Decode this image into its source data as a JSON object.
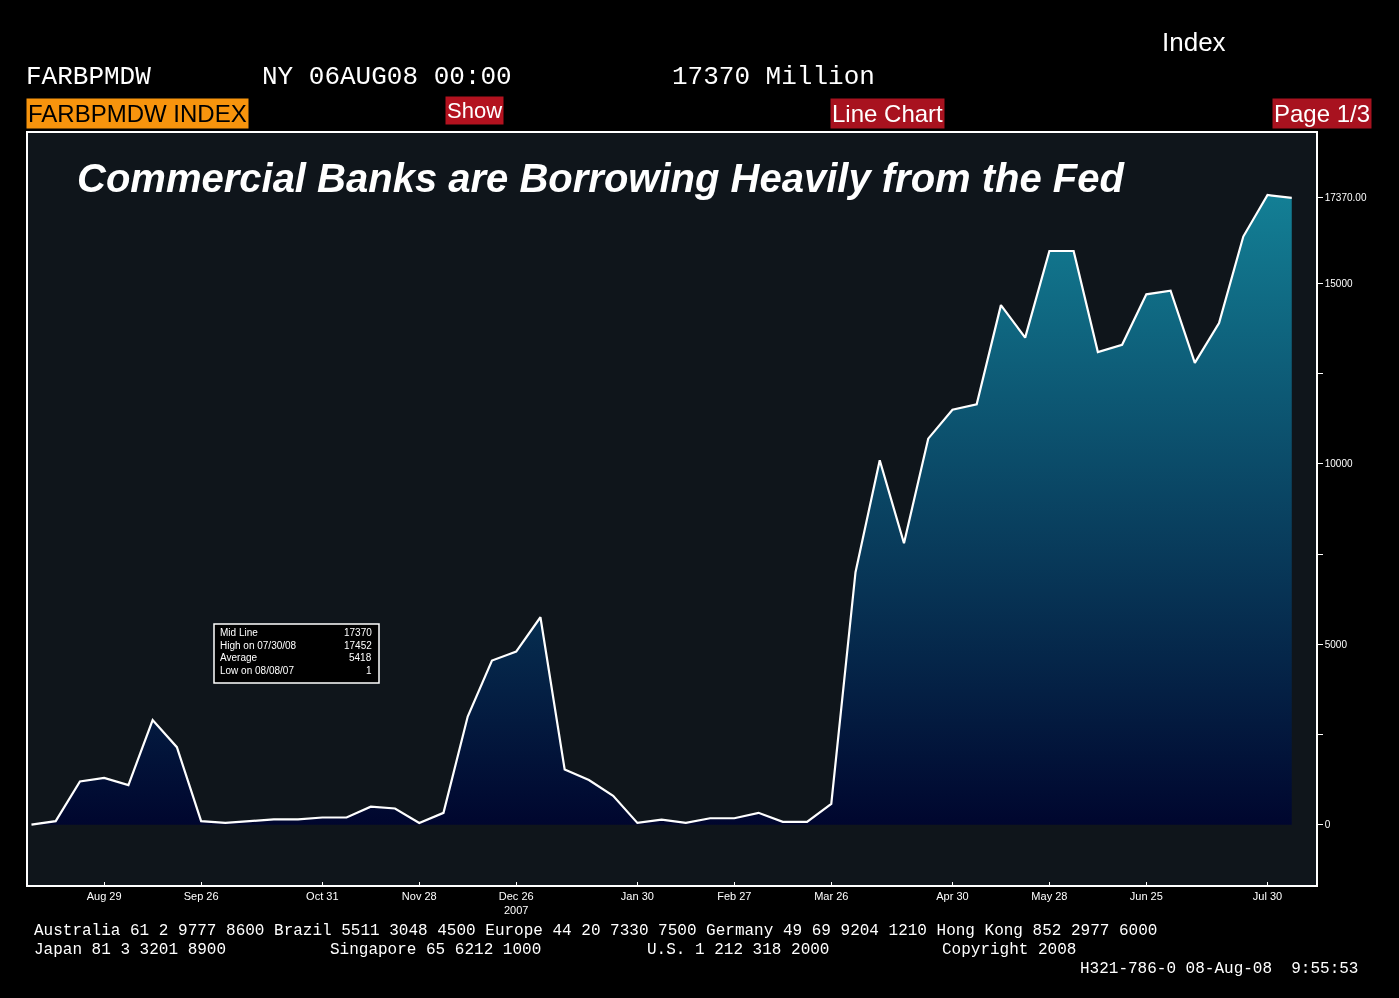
{
  "chart_data": {
    "type": "area",
    "title": "Commercial Banks are Borrowing Heavily from the Fed",
    "x": [
      "2007-08-08",
      "2007-08-15",
      "2007-08-22",
      "2007-08-29",
      "2007-09-05",
      "2007-09-12",
      "2007-09-19",
      "2007-09-26",
      "2007-10-03",
      "2007-10-10",
      "2007-10-17",
      "2007-10-24",
      "2007-10-31",
      "2007-11-07",
      "2007-11-14",
      "2007-11-21",
      "2007-11-28",
      "2007-12-05",
      "2007-12-12",
      "2007-12-19",
      "2007-12-26",
      "2008-01-02",
      "2008-01-09",
      "2008-01-16",
      "2008-01-23",
      "2008-01-30",
      "2008-02-06",
      "2008-02-13",
      "2008-02-20",
      "2008-02-27",
      "2008-03-05",
      "2008-03-12",
      "2008-03-19",
      "2008-03-26",
      "2008-04-02",
      "2008-04-09",
      "2008-04-16",
      "2008-04-23",
      "2008-04-30",
      "2008-05-07",
      "2008-05-14",
      "2008-05-21",
      "2008-05-28",
      "2008-06-04",
      "2008-06-11",
      "2008-06-18",
      "2008-06-25",
      "2008-07-02",
      "2008-07-09",
      "2008-07-16",
      "2008-07-23",
      "2008-07-30",
      "2008-08-06"
    ],
    "series": [
      {
        "color": "#ffffff",
        "values": [
          1,
          100,
          1200,
          1300,
          1100,
          2900,
          2150,
          100,
          50,
          100,
          150,
          150,
          200,
          200,
          500,
          450,
          50,
          330,
          3000,
          4550,
          4800,
          5750,
          1530,
          1240,
          800,
          50,
          140,
          50,
          180,
          180,
          330,
          80,
          80,
          580,
          7000,
          10100,
          7800,
          10700,
          11500,
          11650,
          14400,
          13500,
          15900,
          15900,
          13100,
          13300,
          14700,
          14800,
          12800,
          13900,
          16300,
          17452,
          17370
        ]
      }
    ],
    "xlim": [
      "2007-08-07",
      "2008-08-13"
    ],
    "xticks": [
      {
        "value": "2007-08-29",
        "label": "Aug 29"
      },
      {
        "value": "2007-09-26",
        "label": "Sep 26"
      },
      {
        "value": "2007-10-31",
        "label": "Oct 31"
      },
      {
        "value": "2007-11-28",
        "label": "Nov 28"
      },
      {
        "value": "2007-12-26",
        "label": "Dec 26\n2007"
      },
      {
        "value": "2008-01-30",
        "label": "Jan 30"
      },
      {
        "value": "2008-02-27",
        "label": "Feb 27"
      },
      {
        "value": "2008-03-26",
        "label": "Mar 26"
      },
      {
        "value": "2008-04-30",
        "label": "Apr 30"
      },
      {
        "value": "2008-05-28",
        "label": "May 28"
      },
      {
        "value": "2008-06-25",
        "label": "Jun 25"
      },
      {
        "value": "2008-07-30",
        "label": "Jul 30"
      }
    ],
    "ylim": [
      -1670,
      19170
    ],
    "yticks": [
      0,
      {
        "value": 2500,
        "label": null
      },
      5000,
      {
        "value": 7500,
        "label": null
      },
      10000,
      {
        "value": 12500,
        "label": null
      },
      15000,
      {
        "value": 17370,
        "label": "17370.00"
      }
    ],
    "grid": false,
    "marker": "none",
    "line_style": "solid",
    "annotations": [
      "FARBPMDW",
      "NY 06AUG08 00:00",
      "17370 Million",
      "Index",
      "FARBPMDW INDEX",
      "Show",
      "Line Chart",
      "Page 1/3",
      "Mid Line",
      "17370",
      "High on 07/30/08",
      "17452",
      "Average",
      "5418",
      "Low on 08/08/07",
      "1",
      "Australia 61 2 9777 8600 Brazil 5511 3048 4500 Europe 44 20 7330 7500 Germany 49 69 9204 1210 Hong Kong 852 2977 6000",
      "Japan 81 3 3201 8900",
      "Singapore 65 6212 1000",
      "U.S. 1 212 318 2000",
      "Copyright 2008",
      "H321-786-0 08-Aug-08  9:55:53"
    ]
  }
}
